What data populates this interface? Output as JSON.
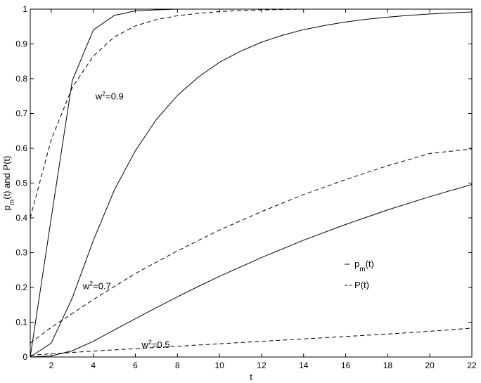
{
  "chart_data": {
    "type": "line",
    "title": "",
    "xlabel": "t",
    "ylabel_main": "p",
    "ylabel_sub": "m",
    "ylabel_rest": "(t) and P(t)",
    "xlim": [
      1,
      22
    ],
    "ylim": [
      0,
      1
    ],
    "xticks": [
      2,
      4,
      6,
      8,
      10,
      12,
      14,
      16,
      18,
      20,
      22
    ],
    "yticks": [
      0,
      0.1,
      0.2,
      0.3,
      0.4,
      0.5,
      0.6,
      0.7,
      0.8,
      0.9,
      1
    ],
    "grid": false,
    "legend_position": "lower-right",
    "legend": [
      {
        "style": "solid",
        "main": "p",
        "sub": "m",
        "rest": "(t)"
      },
      {
        "style": "dashed",
        "main": "P(t)",
        "sub": "",
        "rest": ""
      }
    ],
    "annotations": [
      {
        "base": "w",
        "sup": "2",
        "rest": "=0.9",
        "x": 4.1,
        "y": 0.74
      },
      {
        "base": "w",
        "sup": "2",
        "rest": "=0.7",
        "x": 3.5,
        "y": 0.195
      },
      {
        "base": "w",
        "sup": "2",
        "rest": "=0.5",
        "x": 6.3,
        "y": 0.026
      }
    ],
    "series": [
      {
        "group": "w^2=0.9",
        "style": "solid",
        "x": [
          1,
          2,
          3,
          4,
          5,
          6,
          7,
          8,
          10,
          12,
          14,
          16,
          18,
          20,
          22
        ],
        "y": [
          0,
          0.4,
          0.795,
          0.94,
          0.982,
          0.995,
          0.998,
          1,
          1,
          1,
          1,
          1,
          1,
          1,
          1
        ]
      },
      {
        "group": "w^2=0.9",
        "style": "dashed",
        "x": [
          1,
          2,
          3,
          4,
          5,
          6,
          7,
          8,
          9,
          10,
          11,
          12,
          13,
          14,
          16,
          18,
          20,
          22
        ],
        "y": [
          0.4,
          0.625,
          0.775,
          0.865,
          0.92,
          0.952,
          0.97,
          0.981,
          0.988,
          0.993,
          0.996,
          0.998,
          0.999,
          1,
          1,
          1,
          1,
          1
        ]
      },
      {
        "group": "w^2=0.7",
        "style": "solid",
        "x": [
          1,
          2,
          3,
          4,
          5,
          6,
          7,
          8,
          9,
          10,
          11,
          12,
          13,
          14,
          15,
          16,
          17,
          18,
          19,
          20,
          21,
          22
        ],
        "y": [
          0,
          0.04,
          0.17,
          0.335,
          0.48,
          0.593,
          0.683,
          0.752,
          0.805,
          0.847,
          0.879,
          0.905,
          0.925,
          0.941,
          0.953,
          0.963,
          0.971,
          0.977,
          0.982,
          0.986,
          0.989,
          0.992
        ]
      },
      {
        "group": "w^2=0.7",
        "style": "dashed",
        "x": [
          1,
          2,
          4,
          6,
          8,
          10,
          12,
          14,
          16,
          18,
          20,
          22
        ],
        "y": [
          0.04,
          0.085,
          0.165,
          0.24,
          0.305,
          0.365,
          0.418,
          0.467,
          0.51,
          0.55,
          0.585,
          0.598
        ]
      },
      {
        "group": "w^2=0.5",
        "style": "solid",
        "x": [
          1,
          2,
          3,
          4,
          5,
          6,
          7,
          8,
          9,
          10,
          12,
          14,
          16,
          18,
          20,
          22
        ],
        "y": [
          0,
          0.003,
          0.018,
          0.045,
          0.078,
          0.11,
          0.142,
          0.173,
          0.203,
          0.232,
          0.286,
          0.336,
          0.381,
          0.423,
          0.461,
          0.496
        ]
      },
      {
        "group": "w^2=0.5",
        "style": "dashed",
        "x": [
          1,
          2,
          4,
          6,
          8,
          10,
          12,
          14,
          16,
          18,
          20,
          22
        ],
        "y": [
          0.005,
          0.009,
          0.017,
          0.024,
          0.031,
          0.038,
          0.045,
          0.052,
          0.059,
          0.066,
          0.074,
          0.083
        ]
      }
    ]
  }
}
